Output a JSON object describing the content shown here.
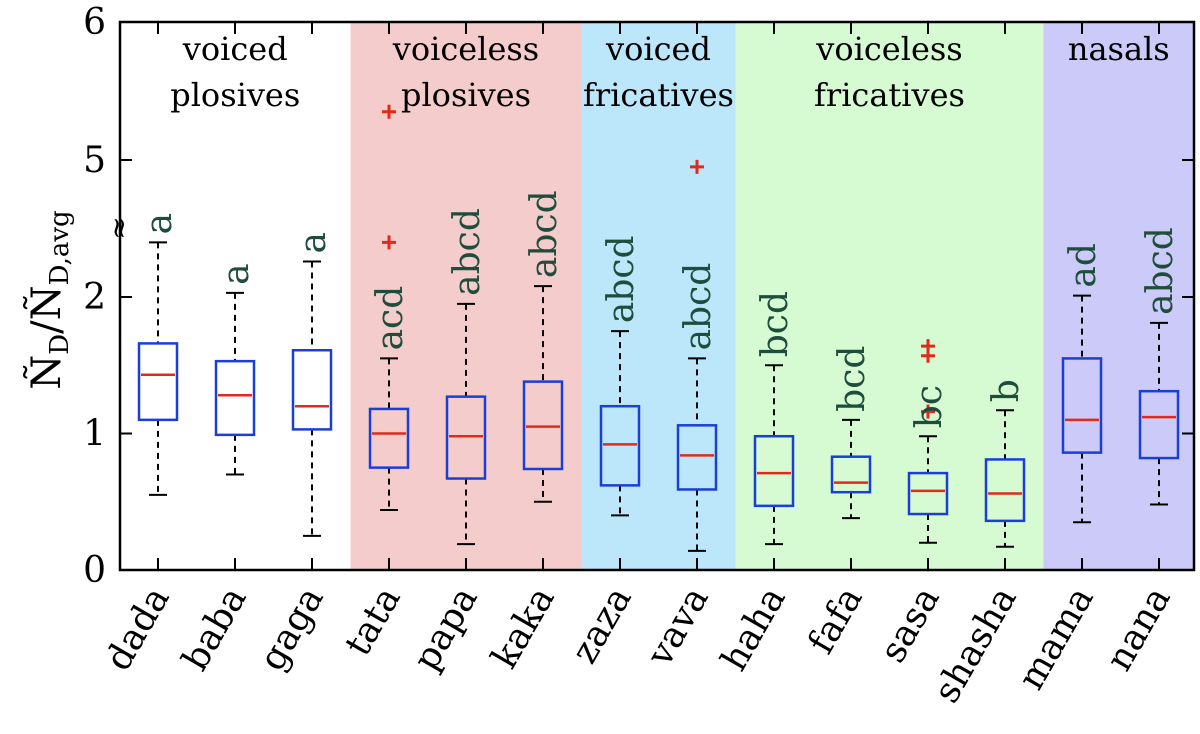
{
  "chart_data": {
    "type": "box",
    "ylabel": {
      "prefix": "Ñ",
      "sub1": "D",
      "slash": "/Ñ",
      "sub2": "D,avg"
    },
    "yticks": [
      "0",
      "1",
      "2",
      "5",
      "6"
    ],
    "axis_break_symbol": "≈",
    "categories": [
      "dada",
      "baba",
      "gaga",
      "tata",
      "papa",
      "kaka",
      "zaza",
      "vava",
      "haha",
      "fafa",
      "sasa",
      "shasha",
      "mama",
      "nana"
    ],
    "groups": [
      {
        "label_lines": [
          "voiced",
          "plosives"
        ],
        "color": "#ffffff",
        "from": 0,
        "to": 2
      },
      {
        "label_lines": [
          "voiceless",
          "plosives"
        ],
        "color": "#f5cccc",
        "from": 3,
        "to": 5
      },
      {
        "label_lines": [
          "voiced",
          "fricatives"
        ],
        "color": "#bce6fa",
        "from": 6,
        "to": 7
      },
      {
        "label_lines": [
          "voiceless",
          "fricatives"
        ],
        "color": "#d6fad2",
        "from": 8,
        "to": 11
      },
      {
        "label_lines": [
          "nasals"
        ],
        "color": "#cccaf8",
        "from": 12,
        "to": 13
      }
    ],
    "boxes": [
      {
        "whisker_low": 0.55,
        "q1": 1.1,
        "median": 1.43,
        "q3": 1.66,
        "whisker_high": 2.4,
        "outliers": [],
        "letters": "a"
      },
      {
        "whisker_low": 0.7,
        "q1": 0.99,
        "median": 1.28,
        "q3": 1.53,
        "whisker_high": 2.03,
        "outliers": [],
        "letters": "a"
      },
      {
        "whisker_low": 0.25,
        "q1": 1.03,
        "median": 1.2,
        "q3": 1.61,
        "whisker_high": 2.26,
        "outliers": [],
        "letters": "a"
      },
      {
        "whisker_low": 0.44,
        "q1": 0.75,
        "median": 1.0,
        "q3": 1.18,
        "whisker_high": 1.55,
        "outliers": [
          2.4,
          5.35
        ],
        "letters": "acd"
      },
      {
        "whisker_low": 0.19,
        "q1": 0.67,
        "median": 0.98,
        "q3": 1.27,
        "whisker_high": 1.95,
        "outliers": [],
        "letters": "abcd"
      },
      {
        "whisker_low": 0.5,
        "q1": 0.74,
        "median": 1.05,
        "q3": 1.38,
        "whisker_high": 2.08,
        "outliers": [],
        "letters": "abcd"
      },
      {
        "whisker_low": 0.4,
        "q1": 0.62,
        "median": 0.92,
        "q3": 1.2,
        "whisker_high": 1.75,
        "outliers": [],
        "letters": "abcd"
      },
      {
        "whisker_low": 0.14,
        "q1": 0.59,
        "median": 0.84,
        "q3": 1.06,
        "whisker_high": 1.55,
        "outliers": [
          4.95
        ],
        "letters": "abcd"
      },
      {
        "whisker_low": 0.19,
        "q1": 0.47,
        "median": 0.71,
        "q3": 0.98,
        "whisker_high": 1.5,
        "outliers": [],
        "letters": "bcd"
      },
      {
        "whisker_low": 0.38,
        "q1": 0.57,
        "median": 0.64,
        "q3": 0.83,
        "whisker_high": 1.1,
        "outliers": [],
        "letters": "bcd"
      },
      {
        "whisker_low": 0.2,
        "q1": 0.41,
        "median": 0.58,
        "q3": 0.71,
        "whisker_high": 0.98,
        "outliers": [
          1.16,
          1.57,
          1.64
        ],
        "letters": "bc"
      },
      {
        "whisker_low": 0.17,
        "q1": 0.36,
        "median": 0.56,
        "q3": 0.81,
        "whisker_high": 1.17,
        "outliers": [],
        "letters": "b"
      },
      {
        "whisker_low": 0.35,
        "q1": 0.86,
        "median": 1.1,
        "q3": 1.55,
        "whisker_high": 2.01,
        "outliers": [],
        "letters": "ad"
      },
      {
        "whisker_low": 0.48,
        "q1": 0.82,
        "median": 1.12,
        "q3": 1.31,
        "whisker_high": 1.81,
        "outliers": [],
        "letters": "abcd"
      }
    ],
    "colors": {
      "box": "#1a3fd6",
      "median": "#e02a1a",
      "outlier": "#e02a1a",
      "whisker": "#000000",
      "letters": "#1f4d3c"
    }
  }
}
